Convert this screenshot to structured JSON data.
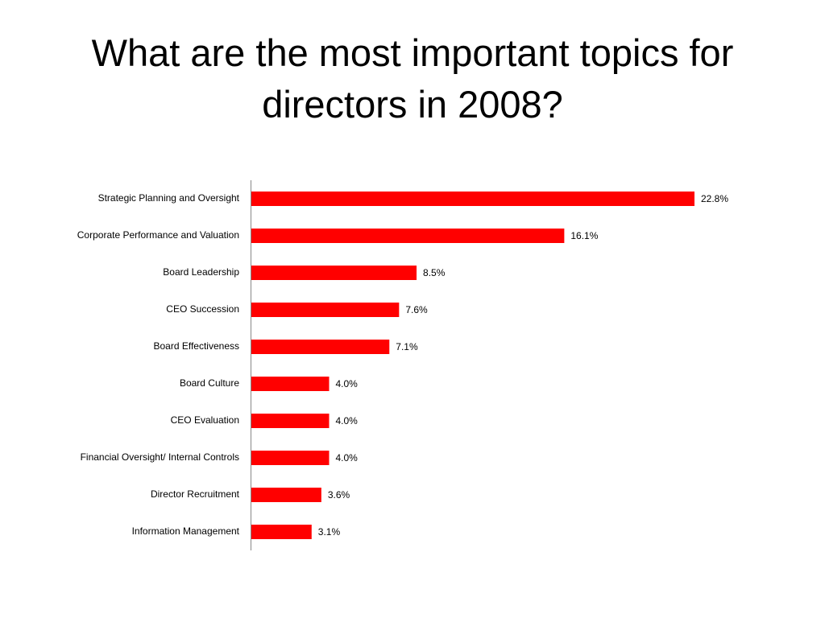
{
  "chart_data": {
    "type": "bar",
    "orientation": "horizontal",
    "title": "What are the most important topics for directors in 2008?",
    "categories": [
      "Strategic Planning and Oversight",
      "Corporate Performance and Valuation",
      "Board Leadership",
      "CEO Succession",
      "Board Effectiveness",
      "Board Culture",
      "CEO Evaluation",
      "Financial Oversight/ Internal Controls",
      "Director Recruitment",
      "Information Management"
    ],
    "values": [
      22.8,
      16.1,
      8.5,
      7.6,
      7.1,
      4.0,
      4.0,
      4.0,
      3.6,
      3.1
    ],
    "value_labels": [
      "22.8%",
      "16.1%",
      "8.5%",
      "7.6%",
      "7.1%",
      "4.0%",
      "4.0%",
      "4.0%",
      "3.6%",
      "3.1%"
    ],
    "color": "#ff0000"
  }
}
